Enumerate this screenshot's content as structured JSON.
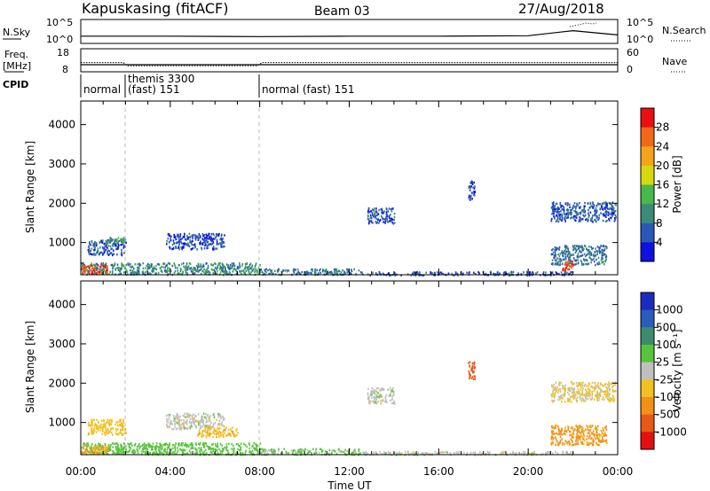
{
  "header": {
    "station": "Kapuskasing (fitACF)",
    "beam": "Beam 03",
    "date": "27/Aug/2018"
  },
  "noise_panel": {
    "left_label": "N.Sky",
    "right_label": "N.Search",
    "left_ticks": [
      "10^5",
      "10^0"
    ],
    "right_ticks": [
      "10^5",
      "10^0"
    ]
  },
  "freq_panel": {
    "left_label": "Freq.",
    "left_unit": "[MHz]",
    "right_label": "Nave",
    "left_ticks": [
      "18",
      "8"
    ],
    "right_ticks": [
      "60",
      "0"
    ]
  },
  "cpid": {
    "label": "CPID",
    "segments": [
      {
        "text": "normal",
        "start_hour": 0.0
      },
      {
        "text": "themis 3300",
        "start_hour": 2.0,
        "line": 1
      },
      {
        "text": "(fast)  151",
        "start_hour": 2.0,
        "line": 2
      },
      {
        "text": "normal (fast)  151",
        "start_hour": 8.0
      }
    ]
  },
  "axes": {
    "x_label": "Time UT",
    "x_ticks": [
      "00:00",
      "04:00",
      "08:00",
      "12:00",
      "16:00",
      "20:00",
      "00:00"
    ],
    "y_label": "Slant Range [km]",
    "y_ticks": [
      "1000",
      "2000",
      "3000",
      "4000"
    ]
  },
  "colorbars": {
    "power": {
      "label": "Power [dB]",
      "ticks": [
        "4",
        "8",
        "12",
        "16",
        "20",
        "24",
        "28"
      ],
      "colors": [
        "#1010e0",
        "#2a58b8",
        "#3c8a78",
        "#48b84a",
        "#d8d810",
        "#f2a41c",
        "#f06818",
        "#e81010"
      ]
    },
    "velocity": {
      "label": "Velocity [m s⁻¹]",
      "ticks": [
        "1000",
        "500",
        "100",
        "25",
        "-25",
        "-100",
        "-500",
        "-1000"
      ],
      "colors": [
        "#1a2cc0",
        "#2a5cb8",
        "#3c8c6c",
        "#58c43c",
        "#c0c0c0",
        "#f2c020",
        "#f29018",
        "#e85818",
        "#e41010"
      ]
    }
  },
  "chart_data": [
    {
      "type": "line",
      "title": "Kapuskasing (fitACF)",
      "x_range_hours": [
        0,
        24
      ],
      "series": [
        {
          "name": "N.Sky",
          "x": [
            0,
            4,
            8,
            12,
            16,
            20,
            22,
            24
          ],
          "y_log10": [
            1.5,
            1.5,
            1.4,
            1.5,
            1.5,
            1.6,
            2.8,
            1.8
          ]
        }
      ],
      "ylim_log10": [
        0,
        5
      ]
    },
    {
      "type": "line",
      "x_range_hours": [
        0,
        24
      ],
      "series": [
        {
          "name": "Freq.",
          "x": [
            0,
            1.9,
            2.1,
            7.9,
            8.1,
            24
          ],
          "y": [
            12.0,
            12.0,
            10.6,
            10.6,
            12.0,
            12.0
          ]
        },
        {
          "name": "Nave",
          "x": [
            0,
            24
          ],
          "y": [
            14,
            14
          ]
        }
      ],
      "ylim": [
        8,
        18
      ]
    },
    {
      "type": "heatmap",
      "quantity": "Power [dB]",
      "xlabel": "Time UT",
      "ylabel": "Slant Range [km]",
      "xlim_hours": [
        0,
        24
      ],
      "ylim": [
        180,
        4600
      ],
      "cbar_range": [
        0,
        32
      ],
      "regions": [
        {
          "t0": 0.0,
          "t1": 8.0,
          "r0": 200,
          "r1": 500,
          "value": 10
        },
        {
          "t0": 0.0,
          "t1": 1.2,
          "r0": 220,
          "r1": 450,
          "value": 28
        },
        {
          "t0": 8.0,
          "t1": 12.5,
          "r0": 200,
          "r1": 350,
          "value": 8
        },
        {
          "t0": 12.5,
          "t1": 22.0,
          "r0": 190,
          "r1": 280,
          "value": 6
        },
        {
          "t0": 0.3,
          "t1": 2.0,
          "r0": 700,
          "r1": 1100,
          "value": 6
        },
        {
          "t0": 1.2,
          "t1": 2.0,
          "r0": 1000,
          "r1": 1150,
          "value": 12
        },
        {
          "t0": 3.8,
          "t1": 6.4,
          "r0": 850,
          "r1": 1250,
          "value": 5
        },
        {
          "t0": 12.8,
          "t1": 14.0,
          "r0": 1500,
          "r1": 1900,
          "value": 6
        },
        {
          "t0": 17.3,
          "t1": 17.6,
          "r0": 2100,
          "r1": 2600,
          "value": 5
        },
        {
          "t0": 21.0,
          "t1": 23.9,
          "r0": 1550,
          "r1": 2050,
          "value": 6
        },
        {
          "t0": 21.0,
          "t1": 23.5,
          "r0": 450,
          "r1": 950,
          "value": 8
        },
        {
          "t0": 21.5,
          "t1": 22.0,
          "r0": 300,
          "r1": 550,
          "value": 28
        }
      ]
    },
    {
      "type": "heatmap",
      "quantity": "Velocity [m s⁻¹]",
      "xlabel": "Time UT",
      "ylabel": "Slant Range [km]",
      "xlim_hours": [
        0,
        24
      ],
      "ylim": [
        180,
        4600
      ],
      "regions": [
        {
          "t0": 0.0,
          "t1": 8.0,
          "r0": 200,
          "r1": 500,
          "value": 60
        },
        {
          "t0": 0.0,
          "t1": 1.2,
          "r0": 220,
          "r1": 450,
          "value": -100
        },
        {
          "t0": 8.0,
          "t1": 12.5,
          "r0": 200,
          "r1": 350,
          "value": 40
        },
        {
          "t0": 12.5,
          "t1": 22.0,
          "r0": 190,
          "r1": 280,
          "value": 0
        },
        {
          "t0": 0.3,
          "t1": 2.0,
          "r0": 700,
          "r1": 1100,
          "value": -60
        },
        {
          "t0": 3.8,
          "t1": 6.4,
          "r0": 850,
          "r1": 1250,
          "value": 0
        },
        {
          "t0": 5.2,
          "t1": 7.0,
          "r0": 650,
          "r1": 900,
          "value": -80
        },
        {
          "t0": 12.8,
          "t1": 14.0,
          "r0": 1500,
          "r1": 1900,
          "value": 0
        },
        {
          "t0": 17.3,
          "t1": 17.6,
          "r0": 2100,
          "r1": 2600,
          "value": -600
        },
        {
          "t0": 21.0,
          "t1": 23.9,
          "r0": 1550,
          "r1": 2050,
          "value": -30
        },
        {
          "t0": 21.0,
          "t1": 23.5,
          "r0": 450,
          "r1": 950,
          "value": -120
        }
      ]
    }
  ]
}
